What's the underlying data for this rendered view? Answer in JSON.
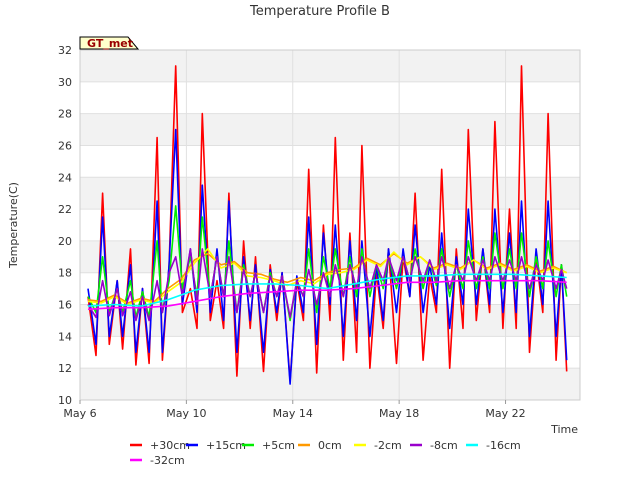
{
  "chart_data": {
    "type": "line",
    "title": "Temperature Profile B",
    "xlabel": "Time",
    "ylabel": "Temperature(C)",
    "station_label": "GT_met",
    "x_unit": "day of May",
    "xlim": [
      6,
      24.8
    ],
    "ylim": [
      10,
      32
    ],
    "x_ticks": [
      6,
      10,
      14,
      18,
      22
    ],
    "x_tick_labels": [
      "May 6",
      "May 10",
      "May 14",
      "May 18",
      "May 22"
    ],
    "y_ticks": [
      10,
      12,
      14,
      16,
      18,
      20,
      22,
      24,
      26,
      28,
      30,
      32
    ],
    "grid": true,
    "background_bands": true,
    "legend_position": "bottom",
    "series": [
      {
        "name": "+30cm",
        "color": "#ff0000",
        "x": [
          6.3,
          6.6,
          6.85,
          7.1,
          7.4,
          7.6,
          7.9,
          8.1,
          8.35,
          8.6,
          8.9,
          9.1,
          9.35,
          9.6,
          9.85,
          10.15,
          10.4,
          10.6,
          10.9,
          11.15,
          11.4,
          11.6,
          11.9,
          12.15,
          12.4,
          12.6,
          12.9,
          13.15,
          13.4,
          13.6,
          13.9,
          14.15,
          14.4,
          14.6,
          14.9,
          15.15,
          15.4,
          15.6,
          15.9,
          16.15,
          16.4,
          16.6,
          16.9,
          17.15,
          17.4,
          17.6,
          17.9,
          18.15,
          18.4,
          18.6,
          18.9,
          19.15,
          19.4,
          19.6,
          19.9,
          20.15,
          20.4,
          20.6,
          20.9,
          21.15,
          21.4,
          21.6,
          21.9,
          22.15,
          22.4,
          22.6,
          22.9,
          23.15,
          23.4,
          23.6,
          23.9,
          24.1,
          24.3
        ],
        "y": [
          16.5,
          12.8,
          23,
          13.5,
          17.5,
          13.2,
          19.5,
          12.2,
          17,
          12.3,
          26.5,
          12.5,
          18.5,
          31,
          15.5,
          17,
          14.5,
          28,
          15,
          17.5,
          14.5,
          23,
          11.5,
          20,
          14.5,
          19,
          11.8,
          18.5,
          15,
          18,
          11.2,
          17.5,
          15,
          24.5,
          11.7,
          21,
          15,
          26.5,
          12.5,
          20.5,
          13,
          26,
          12,
          18,
          14.5,
          19.5,
          12.3,
          19,
          16.5,
          23,
          12.5,
          17.8,
          15.5,
          24.5,
          12,
          19.5,
          14.5,
          27,
          15,
          19.5,
          15.5,
          27.5,
          14.5,
          22,
          14.5,
          31,
          13,
          19,
          15.5,
          28,
          12.5,
          18.5,
          11.8
        ]
      },
      {
        "name": "+15cm",
        "color": "#0000ff",
        "x": [
          6.3,
          6.6,
          6.85,
          7.1,
          7.4,
          7.6,
          7.9,
          8.1,
          8.35,
          8.6,
          8.9,
          9.1,
          9.35,
          9.6,
          9.85,
          10.15,
          10.4,
          10.6,
          10.9,
          11.15,
          11.4,
          11.6,
          11.9,
          12.15,
          12.4,
          12.6,
          12.9,
          13.15,
          13.4,
          13.6,
          13.9,
          14.15,
          14.4,
          14.6,
          14.9,
          15.15,
          15.4,
          15.6,
          15.9,
          16.15,
          16.4,
          16.6,
          16.9,
          17.15,
          17.4,
          17.6,
          17.9,
          18.15,
          18.4,
          18.6,
          18.9,
          19.15,
          19.4,
          19.6,
          19.9,
          20.15,
          20.4,
          20.6,
          20.9,
          21.15,
          21.4,
          21.6,
          21.9,
          22.15,
          22.4,
          22.6,
          22.9,
          23.15,
          23.4,
          23.6,
          23.9,
          24.1,
          24.3
        ],
        "y": [
          17,
          13.5,
          21.5,
          14,
          17.5,
          14,
          18.5,
          13,
          17,
          13,
          22.5,
          13,
          18.5,
          27,
          16,
          19.5,
          15.5,
          23.5,
          15.5,
          19.5,
          15,
          22.5,
          13,
          19,
          15,
          18.5,
          13,
          18.2,
          15.5,
          18,
          11,
          17.8,
          15.5,
          21.5,
          13.5,
          20.5,
          16,
          21,
          14,
          20,
          15,
          20,
          14,
          18.5,
          15,
          19.5,
          15.5,
          19.5,
          16.5,
          21,
          15.5,
          18.5,
          16,
          20.5,
          14.5,
          19,
          16,
          22,
          16,
          19.5,
          16,
          22,
          15.5,
          20.5,
          15.5,
          22.5,
          14,
          19.5,
          16,
          22.5,
          14,
          18.5,
          12.5
        ]
      },
      {
        "name": "+5cm",
        "color": "#00ee00",
        "x": [
          6.3,
          6.6,
          6.85,
          7.1,
          7.4,
          7.6,
          7.9,
          8.1,
          8.35,
          8.6,
          8.9,
          9.1,
          9.35,
          9.6,
          9.85,
          10.15,
          10.4,
          10.6,
          10.9,
          11.15,
          11.4,
          11.6,
          11.9,
          12.15,
          12.4,
          12.6,
          12.9,
          13.15,
          13.4,
          13.6,
          13.9,
          14.15,
          14.4,
          14.6,
          14.9,
          15.15,
          15.4,
          15.6,
          15.9,
          16.15,
          16.4,
          16.6,
          16.9,
          17.15,
          17.4,
          17.6,
          17.9,
          18.15,
          18.4,
          18.6,
          18.9,
          19.15,
          19.4,
          19.6,
          19.9,
          20.15,
          20.4,
          20.6,
          20.9,
          21.15,
          21.4,
          21.6,
          21.9,
          22.15,
          22.4,
          22.6,
          22.9,
          23.15,
          23.4,
          23.6,
          23.9,
          24.1,
          24.3
        ],
        "y": [
          16.5,
          15.5,
          19,
          15.5,
          17,
          15.5,
          17.5,
          15.2,
          16.8,
          15.2,
          20,
          15.5,
          17.5,
          22.2,
          17,
          19,
          16.5,
          21.5,
          16.5,
          19,
          16.5,
          20,
          15.5,
          18.5,
          16.5,
          18,
          15.5,
          18,
          16.5,
          17.8,
          15,
          17.5,
          16.5,
          19.5,
          15.5,
          19,
          17,
          19.5,
          16.5,
          19,
          16.5,
          19.5,
          16.5,
          18.5,
          17,
          19,
          17,
          19,
          17.5,
          19.5,
          17,
          18.8,
          17.2,
          19.5,
          16.5,
          18.5,
          17,
          20,
          17,
          19,
          17,
          20.5,
          17,
          19.5,
          17,
          20.5,
          16.5,
          19,
          17,
          20,
          16.5,
          18.5,
          16.5
        ]
      },
      {
        "name": "0cm",
        "color": "#ff9900",
        "x": [
          6.3,
          6.8,
          7.3,
          7.8,
          8.3,
          8.8,
          9.3,
          9.8,
          10.3,
          10.8,
          11.3,
          11.8,
          12.3,
          12.8,
          13.3,
          13.8,
          14.3,
          14.8,
          15.3,
          15.8,
          16.3,
          16.8,
          17.3,
          17.8,
          18.3,
          18.8,
          19.3,
          19.8,
          20.3,
          20.8,
          21.3,
          21.8,
          22.3,
          22.8,
          23.3,
          23.8,
          24.3
        ],
        "y": [
          16.3,
          16.2,
          16.6,
          16.1,
          16.4,
          16.2,
          17,
          17.6,
          18.8,
          19.2,
          18.5,
          18.7,
          18,
          17.9,
          17.6,
          17.4,
          17.7,
          17.5,
          18,
          18.2,
          18.3,
          18.9,
          18.5,
          19.2,
          18.6,
          19,
          18.3,
          18.6,
          18.3,
          18.8,
          18.3,
          18.6,
          18.2,
          18.5,
          18.1,
          18.4,
          18
        ]
      },
      {
        "name": "-2cm",
        "color": "#ffff00",
        "x": [
          6.3,
          6.8,
          7.3,
          7.8,
          8.3,
          8.8,
          9.3,
          9.8,
          10.3,
          10.8,
          11.3,
          11.8,
          12.3,
          12.8,
          13.3,
          13.8,
          14.3,
          14.8,
          15.3,
          15.8,
          16.3,
          16.8,
          17.3,
          17.8,
          18.3,
          18.8,
          19.3,
          19.8,
          20.3,
          20.8,
          21.3,
          21.8,
          22.3,
          22.8,
          23.3,
          23.8,
          24.3
        ],
        "y": [
          16.2,
          16.1,
          16.5,
          16,
          16.3,
          16.1,
          16.8,
          17.4,
          18.6,
          19.5,
          18.3,
          18.6,
          17.8,
          17.7,
          17.5,
          17.2,
          17.5,
          17.3,
          17.9,
          18,
          18.2,
          18.8,
          18.4,
          19.3,
          18.5,
          19,
          18.2,
          18.5,
          18.2,
          18.8,
          18.2,
          18.5,
          18.1,
          18.4,
          18,
          18.3,
          18
        ]
      },
      {
        "name": "-8cm",
        "color": "#9900cc",
        "x": [
          6.3,
          6.6,
          6.85,
          7.1,
          7.4,
          7.6,
          7.9,
          8.1,
          8.35,
          8.6,
          8.9,
          9.1,
          9.35,
          9.6,
          9.85,
          10.15,
          10.4,
          10.6,
          10.9,
          11.15,
          11.4,
          11.6,
          11.9,
          12.15,
          12.4,
          12.6,
          12.9,
          13.15,
          13.4,
          13.6,
          13.9,
          14.15,
          14.4,
          14.6,
          14.9,
          15.15,
          15.4,
          15.6,
          15.9,
          16.15,
          16.4,
          16.6,
          16.9,
          17.15,
          17.4,
          17.6,
          17.9,
          18.15,
          18.4,
          18.6,
          18.9,
          19.15,
          19.4,
          19.6,
          19.9,
          20.15,
          20.4,
          20.6,
          20.9,
          21.15,
          21.4,
          21.6,
          21.9,
          22.15,
          22.4,
          22.6,
          22.9,
          23.15,
          23.4,
          23.6,
          23.9,
          24.1,
          24.3
        ],
        "y": [
          16,
          15.2,
          17.5,
          15.3,
          17,
          15.3,
          16.8,
          15,
          16.5,
          15,
          17.5,
          15.5,
          18,
          19,
          16.5,
          19.5,
          16,
          19.5,
          16.5,
          19,
          16.5,
          19,
          15.5,
          18.2,
          16.5,
          18,
          15.5,
          17.8,
          16.5,
          17.8,
          15.2,
          17.5,
          16.5,
          18.2,
          16,
          18,
          16.5,
          18.5,
          16.5,
          18.5,
          17,
          19,
          17,
          18.5,
          17.5,
          19,
          17.5,
          19,
          17.5,
          19,
          17.5,
          18.8,
          17.5,
          19,
          17,
          18.5,
          17.5,
          19,
          17.5,
          18.8,
          17.5,
          19,
          17.5,
          18.8,
          17.5,
          19,
          17,
          18.5,
          17.5,
          18.8,
          17,
          18.2,
          17
        ]
      },
      {
        "name": "-16cm",
        "color": "#00ffff",
        "x": [
          6.3,
          7.3,
          8.3,
          9.3,
          10.3,
          11.3,
          12.3,
          13.3,
          14.3,
          15.3,
          16.3,
          17.3,
          18.3,
          19.3,
          20.3,
          21.3,
          22.3,
          23.3,
          24.3
        ],
        "y": [
          15.9,
          16,
          15.9,
          16.3,
          16.9,
          17.2,
          17.3,
          17.3,
          17.2,
          17,
          17.3,
          17.6,
          17.8,
          17.8,
          17.9,
          17.9,
          17.9,
          17.8,
          17.7
        ]
      },
      {
        "name": "-32cm",
        "color": "#ff00ff",
        "x": [
          6.3,
          7.3,
          8.3,
          9.3,
          10.3,
          11.3,
          12.3,
          13.3,
          14.3,
          15.3,
          16.3,
          17.3,
          18.3,
          19.3,
          20.3,
          21.3,
          22.3,
          23.3,
          24.3
        ],
        "y": [
          15.7,
          15.8,
          15.8,
          15.9,
          16.2,
          16.5,
          16.7,
          16.8,
          16.9,
          16.9,
          17,
          17.2,
          17.4,
          17.4,
          17.5,
          17.5,
          17.5,
          17.5,
          17.4
        ]
      }
    ]
  }
}
